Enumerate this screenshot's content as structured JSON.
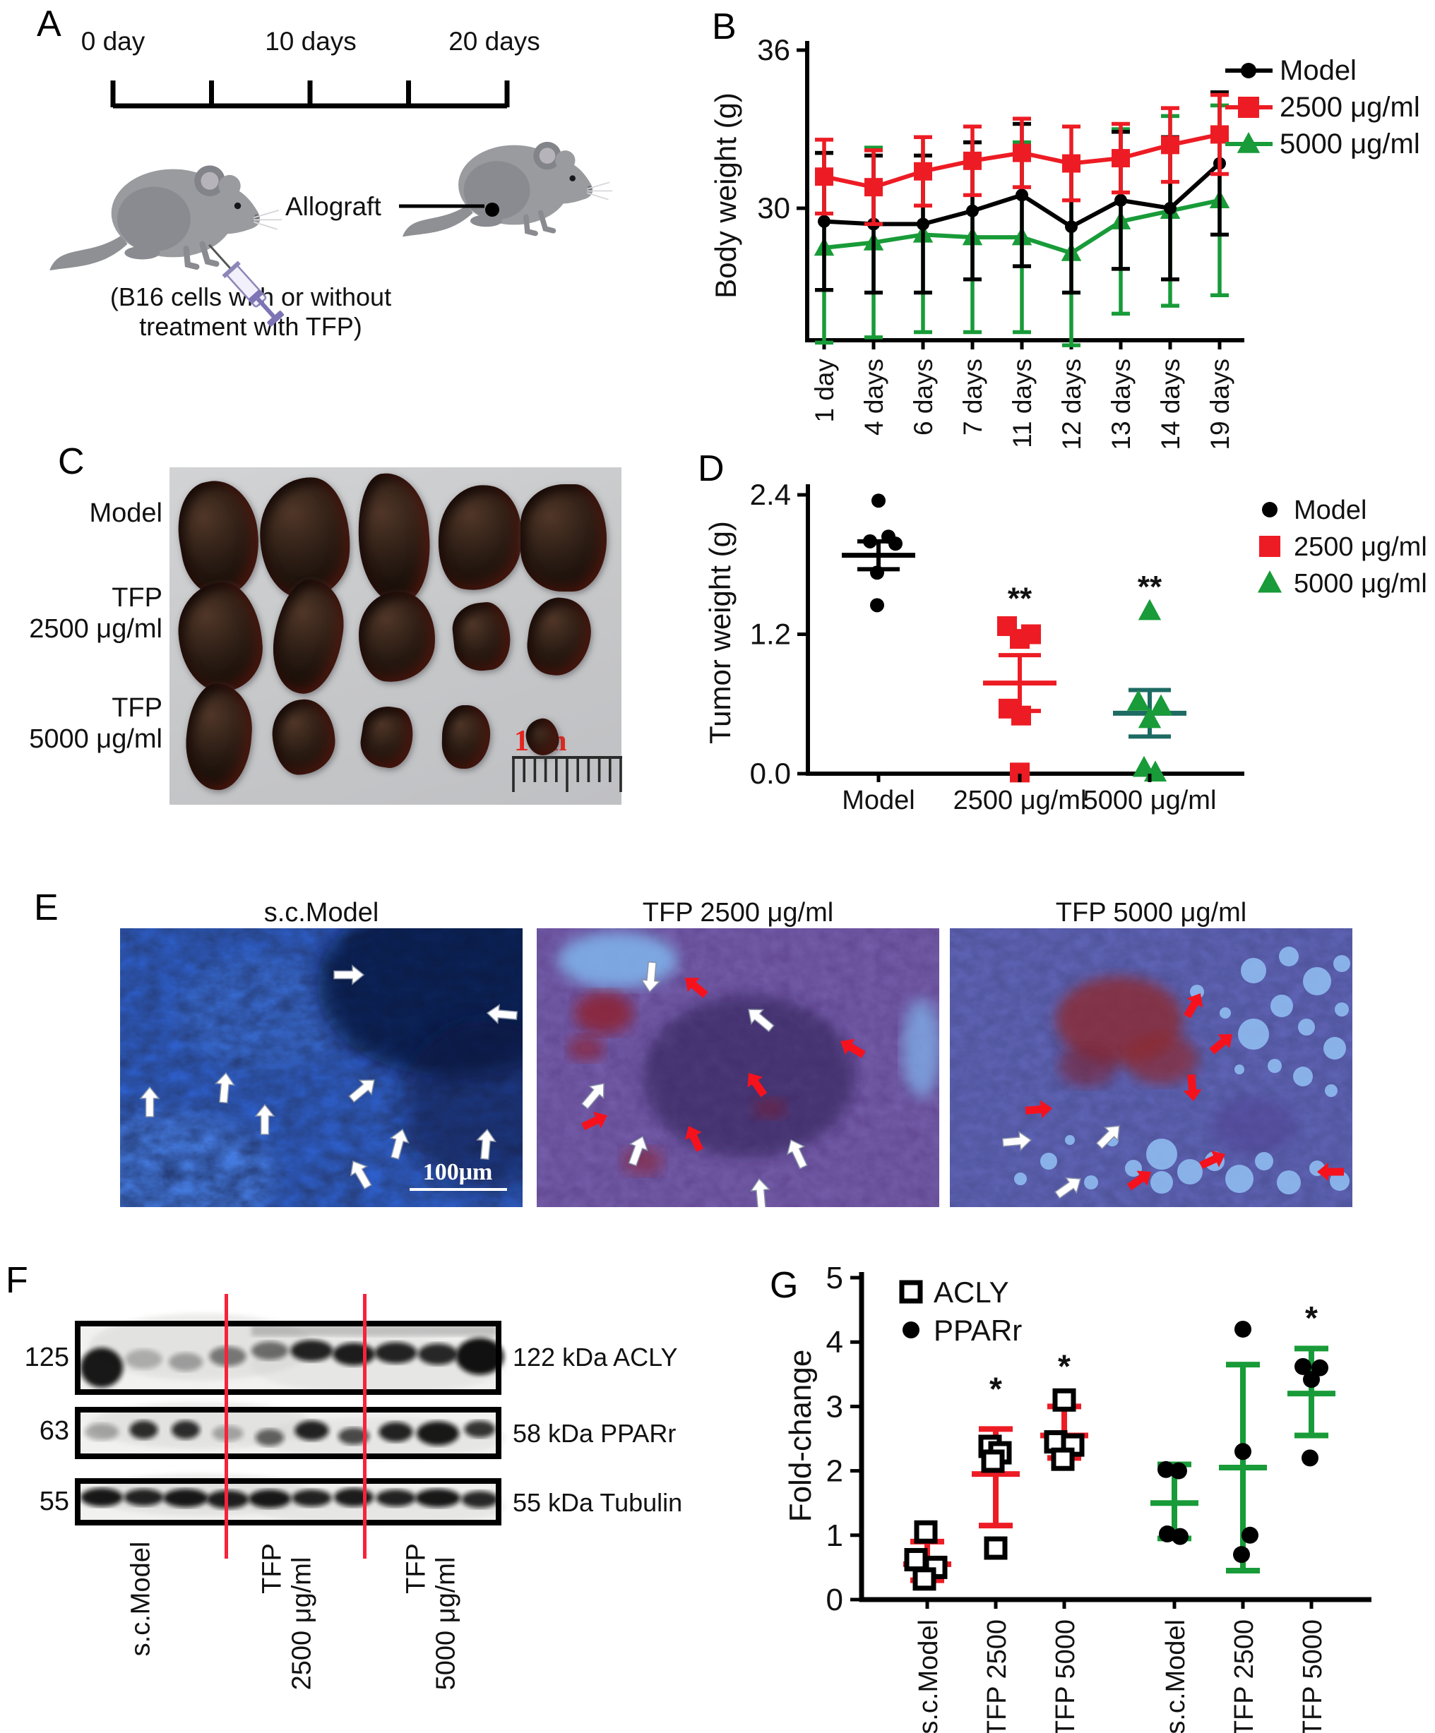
{
  "panels": {
    "A": {
      "label": "A",
      "timeline": [
        "0 day",
        "10 days",
        "20 days"
      ],
      "allograft_label": "Allograft",
      "caption": [
        "(B16 cells with or without",
        "treatment with TFP)"
      ]
    },
    "B": {
      "label": "B"
    },
    "C": {
      "label": "C",
      "row_labels": [
        [
          "Model"
        ],
        [
          "TFP",
          "2500 μg/ml"
        ],
        [
          "TFP",
          "5000 μg/ml"
        ]
      ],
      "scale_label": "1cm"
    },
    "D": {
      "label": "D"
    },
    "E": {
      "label": "E",
      "titles": [
        "s.c.Model",
        "TFP 2500 μg/ml",
        "TFP 5000 μg/ml"
      ],
      "scale_label": "100μm"
    },
    "F": {
      "label": "F",
      "ladder": [
        "125",
        "63",
        "55"
      ],
      "protein_labels": [
        "122 kDa ACLY",
        "58 kDa PPARr",
        "55 kDa Tubulin"
      ],
      "lane_labels": [
        [
          "s.c.Model"
        ],
        [
          "TFP",
          "2500 μg/ml"
        ],
        [
          "TFP",
          "5000 μg/ml"
        ]
      ]
    },
    "G": {
      "label": "G"
    }
  },
  "chart_data": [
    {
      "id": "body-weight",
      "type": "line",
      "title": "",
      "xlabel": "",
      "ylabel": "Body weight (g)",
      "categories": [
        "1 day",
        "4 days",
        "6 days",
        "7 days",
        "11 days",
        "12 days",
        "13 days",
        "14 days",
        "19 days"
      ],
      "ylim": [
        25,
        36
      ],
      "yticks": [
        30,
        36
      ],
      "grid": false,
      "legend_position": "right-outside",
      "series": [
        {
          "name": "Model",
          "marker": "circle",
          "color": "#000000",
          "values": [
            29.5,
            29.4,
            29.4,
            29.9,
            30.5,
            29.3,
            30.3,
            30.0,
            31.7
          ],
          "errors": [
            2.6,
            2.6,
            2.6,
            2.6,
            2.7,
            2.5,
            2.6,
            2.7,
            2.7
          ]
        },
        {
          "name": "2500 μg/ml",
          "marker": "square",
          "color": "#ed1c24",
          "values": [
            31.2,
            30.8,
            31.4,
            31.8,
            32.1,
            31.7,
            31.9,
            32.4,
            32.8
          ],
          "errors": [
            1.4,
            1.4,
            1.3,
            1.3,
            1.3,
            1.4,
            1.3,
            1.4,
            1.5
          ]
        },
        {
          "name": "5000 μg/ml",
          "marker": "triangle",
          "color": "#189b38",
          "values": [
            28.5,
            28.7,
            29.0,
            28.9,
            28.9,
            28.3,
            29.5,
            29.9,
            30.3
          ],
          "errors": [
            3.6,
            3.6,
            3.7,
            3.6,
            3.6,
            3.5,
            3.5,
            3.6,
            3.6
          ]
        }
      ]
    },
    {
      "id": "tumor-weight",
      "type": "scatter",
      "ylabel": "Tumor weight (g)",
      "categories": [
        "Model",
        "2500 μg/ml",
        "5000 μg/ml"
      ],
      "ylim": [
        0,
        2.4
      ],
      "yticks": [
        0,
        1.2,
        2.4
      ],
      "ytick_labels": [
        "0.0",
        "1.2",
        "2.4"
      ],
      "legend": [
        "Model",
        "2500 μg/ml",
        "5000 μg/ml"
      ],
      "groups": [
        {
          "name": "Model",
          "marker": "circle",
          "color": "#000000",
          "mean_color": "#000000",
          "points": [
            2.35,
            2.04,
            2.0,
            1.98,
            1.73,
            1.45
          ],
          "mean": 1.88,
          "sem": 0.12,
          "sig": ""
        },
        {
          "name": "2500 μg/ml",
          "marker": "square",
          "color": "#ed1c24",
          "mean_color": "#ed1c24",
          "points": [
            1.27,
            1.16,
            1.2,
            0.56,
            0.5,
            0.01
          ],
          "mean": 0.78,
          "sem": 0.24,
          "sig": "**",
          "sig_y": 1.42
        },
        {
          "name": "5000 μg/ml",
          "marker": "triangle",
          "color": "#189b38",
          "mean_color": "#1d6b62",
          "points": [
            1.4,
            0.62,
            0.58,
            0.47,
            0.05,
            0.01
          ],
          "mean": 0.52,
          "sem": 0.2,
          "sig": "**",
          "sig_y": 1.52
        }
      ]
    },
    {
      "id": "fold-change",
      "type": "scatter",
      "ylabel": "Fold-change",
      "categories": [
        "s.c.Model",
        "TFP 2500",
        "TFP 5000",
        "s.c.Model",
        "TFP 2500",
        "TFP 5000"
      ],
      "ylim": [
        0,
        5
      ],
      "yticks": [
        0,
        1,
        2,
        3,
        4,
        5
      ],
      "legend": [
        {
          "label": "ACLY",
          "marker": "square-open"
        },
        {
          "label": "PPARr",
          "marker": "circle"
        }
      ],
      "groups": [
        {
          "name": "ACLY s.c.Model",
          "marker": "square-open",
          "err_color": "#ed1c24",
          "points": [
            1.05,
            0.62,
            0.5,
            0.32
          ],
          "mean": 0.55,
          "err_lo": 0.3,
          "err_hi": 0.9,
          "sig": ""
        },
        {
          "name": "ACLY TFP 2500",
          "marker": "square-open",
          "err_color": "#ed1c24",
          "points": [
            2.38,
            2.28,
            2.15,
            0.8
          ],
          "mean": 1.95,
          "err_lo": 1.15,
          "err_hi": 2.65,
          "sig": "*",
          "sig_y": 3.1
        },
        {
          "name": "ACLY TFP 5000",
          "marker": "square-open",
          "err_color": "#ed1c24",
          "points": [
            3.1,
            2.45,
            2.4,
            2.18
          ],
          "mean": 2.55,
          "err_lo": 2.2,
          "err_hi": 3.0,
          "sig": "*",
          "sig_y": 3.45
        },
        {
          "name": "PPARr s.c.Model",
          "marker": "circle",
          "err_color": "#189b38",
          "points": [
            2.02,
            2.0,
            1.02,
            0.98
          ],
          "mean": 1.5,
          "err_lo": 0.95,
          "err_hi": 2.1,
          "sig": ""
        },
        {
          "name": "PPARr TFP 2500",
          "marker": "circle",
          "err_color": "#189b38",
          "points": [
            4.2,
            2.3,
            1.0,
            0.7
          ],
          "mean": 2.05,
          "err_lo": 0.45,
          "err_hi": 3.65,
          "sig": ""
        },
        {
          "name": "PPARr TFP 5000",
          "marker": "circle",
          "err_color": "#189b38",
          "points": [
            3.62,
            3.6,
            3.42,
            2.2
          ],
          "mean": 3.2,
          "err_lo": 2.55,
          "err_hi": 3.9,
          "sig": "*",
          "sig_y": 4.2
        }
      ]
    }
  ],
  "colors": {
    "red": "#ed1c24",
    "green": "#189b38",
    "teal": "#1d6b62",
    "scale_red": "#e8251f"
  }
}
